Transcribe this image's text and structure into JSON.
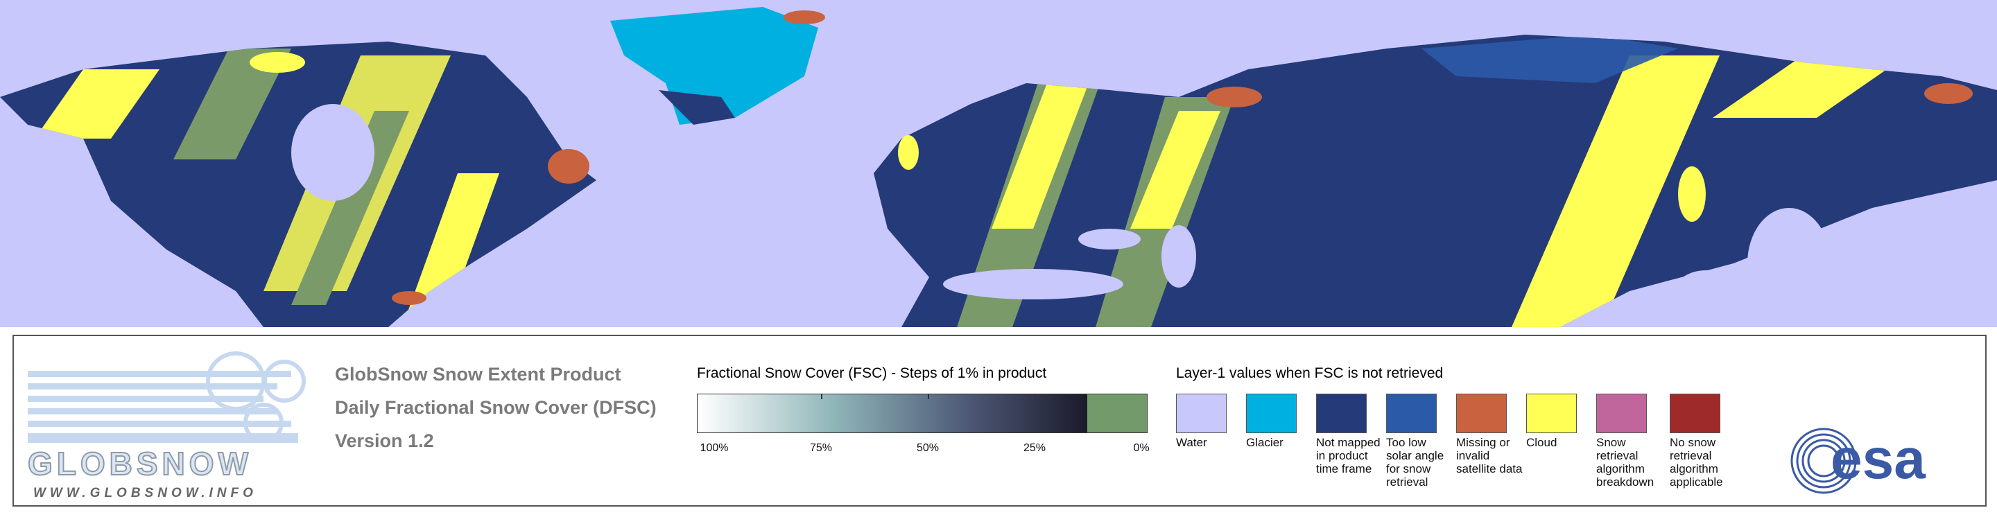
{
  "header": {
    "title": "GlobSnow Snow Extent Product",
    "subtitle": "Daily Fractional Snow Cover (DFSC)",
    "version": "Version 1.2"
  },
  "logo": {
    "name": "GLOBSNOW",
    "url": "WWW.GLOBSNOW.INFO"
  },
  "fsc_legend": {
    "title": "Fractional Snow Cover (FSC) - Steps of 1% in product",
    "ticks": [
      "100%",
      "75%",
      "50%",
      "25%",
      "0%"
    ]
  },
  "layer1_legend": {
    "title": "Layer-1 values when FSC is not retrieved",
    "items": [
      {
        "label": "Water",
        "color": "#c8c8fc"
      },
      {
        "label": "Glacier",
        "color": "#00b0e0"
      },
      {
        "label": "Not mapped in product time frame",
        "color": "#253a78"
      },
      {
        "label": "Too low solar angle for snow retrieval",
        "color": "#2b5aa8"
      },
      {
        "label": "Missing or invalid satellite data",
        "color": "#c8623f"
      },
      {
        "label": "Cloud",
        "color": "#ffff55"
      },
      {
        "label": "Snow retrieval algorithm breakdown",
        "color": "#c0669c"
      },
      {
        "label": "No snow retrieval algorithm applicable",
        "color": "#9e2a2a"
      }
    ]
  },
  "esa_logo": "esa"
}
